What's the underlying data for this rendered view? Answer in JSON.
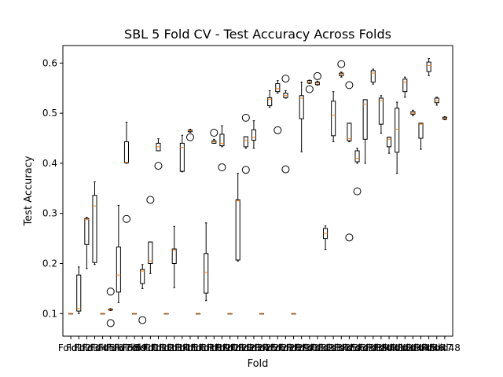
{
  "chart_data": {
    "type": "boxplot",
    "title": "SBL 5 Fold CV - Test Accuracy Across Folds",
    "xlabel": "Fold",
    "ylabel": "Test Accuracy",
    "ylim": [
      0.055,
      0.635
    ],
    "yticks": [
      0.1,
      0.2,
      0.3,
      0.4,
      0.5,
      0.6
    ],
    "ytick_labels": [
      "0.1",
      "0.2",
      "0.3",
      "0.4",
      "0.5",
      "0.6"
    ],
    "grid": false,
    "xtick_labels": [
      "Fold1",
      "Fold2",
      "Fold3",
      "Fold4",
      "Fold5",
      "Fold6",
      "Fold7",
      "Fold8",
      "Fold9",
      "Fold10",
      "Fold11",
      "Fold12",
      "Fold13",
      "Fold14",
      "Fold15",
      "Fold16",
      "Fold17",
      "Fold18",
      "Fold19",
      "Fold20",
      "Fold21",
      "Fold22",
      "Fold23",
      "Fold24",
      "Fold25",
      "Fold26",
      "Fold27",
      "Fold28",
      "Fold29",
      "Fold30",
      "Fold31",
      "Fold32",
      "Fold33",
      "Fold34",
      "Fold35",
      "Fold36",
      "Fold37",
      "Fold38",
      "Fold39",
      "Fold40",
      "Fold41",
      "Fold42",
      "Fold43",
      "Fold44",
      "Fold45",
      "Fold46",
      "Fold47",
      "Fold48"
    ],
    "boxes": [
      {
        "whislo": 0.1,
        "q1": 0.1,
        "med": 0.1,
        "q3": 0.1,
        "whishi": 0.1,
        "fliers": []
      },
      {
        "whislo": 0.1,
        "q1": 0.105,
        "med": 0.11,
        "q3": 0.177,
        "whishi": 0.193,
        "fliers": []
      },
      {
        "whislo": 0.19,
        "q1": 0.238,
        "med": 0.288,
        "q3": 0.29,
        "whishi": 0.292,
        "fliers": []
      },
      {
        "whislo": 0.198,
        "q1": 0.202,
        "med": 0.315,
        "q3": 0.336,
        "whishi": 0.363,
        "fliers": []
      },
      {
        "whislo": 0.1,
        "q1": 0.1,
        "med": 0.1,
        "q3": 0.1,
        "whishi": 0.1,
        "fliers": []
      },
      {
        "whislo": 0.106,
        "q1": 0.107,
        "med": 0.108,
        "q3": 0.109,
        "whishi": 0.11,
        "fliers": [
          0.081,
          0.144
        ]
      },
      {
        "whislo": 0.122,
        "q1": 0.143,
        "med": 0.177,
        "q3": 0.233,
        "whishi": 0.316,
        "fliers": []
      },
      {
        "whislo": 0.4,
        "q1": 0.401,
        "med": 0.402,
        "q3": 0.443,
        "whishi": 0.482,
        "fliers": [
          0.289
        ]
      },
      {
        "whislo": 0.1,
        "q1": 0.1,
        "med": 0.1,
        "q3": 0.1,
        "whishi": 0.1,
        "fliers": []
      },
      {
        "whislo": 0.15,
        "q1": 0.16,
        "med": 0.185,
        "q3": 0.188,
        "whishi": 0.198,
        "fliers": [
          0.087
        ]
      },
      {
        "whislo": 0.18,
        "q1": 0.2,
        "med": 0.205,
        "q3": 0.243,
        "whishi": 0.243,
        "fliers": [
          0.327
        ]
      },
      {
        "whislo": 0.425,
        "q1": 0.425,
        "med": 0.433,
        "q3": 0.44,
        "whishi": 0.449,
        "fliers": [
          0.395
        ]
      },
      {
        "whislo": 0.1,
        "q1": 0.1,
        "med": 0.1,
        "q3": 0.1,
        "whishi": 0.1,
        "fliers": []
      },
      {
        "whislo": 0.152,
        "q1": 0.2,
        "med": 0.227,
        "q3": 0.229,
        "whishi": 0.274,
        "fliers": []
      },
      {
        "whislo": 0.383,
        "q1": 0.384,
        "med": 0.432,
        "q3": 0.44,
        "whishi": 0.456,
        "fliers": []
      },
      {
        "whislo": 0.462,
        "q1": 0.463,
        "med": 0.465,
        "q3": 0.466,
        "whishi": 0.468,
        "fliers": [
          0.452
        ]
      },
      {
        "whislo": 0.1,
        "q1": 0.1,
        "med": 0.1,
        "q3": 0.1,
        "whishi": 0.1,
        "fliers": []
      },
      {
        "whislo": 0.126,
        "q1": 0.141,
        "med": 0.182,
        "q3": 0.22,
        "whishi": 0.281,
        "fliers": []
      },
      {
        "whislo": 0.44,
        "q1": 0.44,
        "med": 0.443,
        "q3": 0.445,
        "whishi": 0.448,
        "fliers": [
          0.461
        ]
      },
      {
        "whislo": 0.433,
        "q1": 0.435,
        "med": 0.44,
        "q3": 0.458,
        "whishi": 0.475,
        "fliers": [
          0.392
        ]
      },
      {
        "whislo": 0.1,
        "q1": 0.1,
        "med": 0.1,
        "q3": 0.1,
        "whishi": 0.1,
        "fliers": []
      },
      {
        "whislo": 0.205,
        "q1": 0.207,
        "med": 0.325,
        "q3": 0.327,
        "whishi": 0.38,
        "fliers": []
      },
      {
        "whislo": 0.43,
        "q1": 0.433,
        "med": 0.446,
        "q3": 0.453,
        "whishi": 0.453,
        "fliers": [
          0.491,
          0.387
        ]
      },
      {
        "whislo": 0.43,
        "q1": 0.446,
        "med": 0.452,
        "q3": 0.467,
        "whishi": 0.485,
        "fliers": []
      },
      {
        "whislo": 0.1,
        "q1": 0.1,
        "med": 0.1,
        "q3": 0.1,
        "whishi": 0.1,
        "fliers": []
      },
      {
        "whislo": 0.512,
        "q1": 0.515,
        "med": 0.528,
        "q3": 0.531,
        "whishi": 0.545,
        "fliers": []
      },
      {
        "whislo": 0.54,
        "q1": 0.543,
        "med": 0.549,
        "q3": 0.559,
        "whishi": 0.565,
        "fliers": [
          0.466
        ]
      },
      {
        "whislo": 0.53,
        "q1": 0.531,
        "med": 0.535,
        "q3": 0.54,
        "whishi": 0.545,
        "fliers": [
          0.569,
          0.388
        ]
      },
      {
        "whislo": 0.1,
        "q1": 0.1,
        "med": 0.1,
        "q3": 0.1,
        "whishi": 0.1,
        "fliers": []
      },
      {
        "whislo": 0.423,
        "q1": 0.489,
        "med": 0.53,
        "q3": 0.535,
        "whishi": 0.562,
        "fliers": []
      },
      {
        "whislo": 0.559,
        "q1": 0.56,
        "med": 0.562,
        "q3": 0.565,
        "whishi": 0.566,
        "fliers": [
          0.548
        ]
      },
      {
        "whislo": 0.556,
        "q1": 0.557,
        "med": 0.56,
        "q3": 0.562,
        "whishi": 0.564,
        "fliers": [
          0.574
        ]
      },
      {
        "whislo": 0.228,
        "q1": 0.25,
        "med": 0.26,
        "q3": 0.27,
        "whishi": 0.275,
        "fliers": []
      },
      {
        "whislo": 0.443,
        "q1": 0.455,
        "med": 0.496,
        "q3": 0.524,
        "whishi": 0.543,
        "fliers": []
      },
      {
        "whislo": 0.572,
        "q1": 0.575,
        "med": 0.578,
        "q3": 0.58,
        "whishi": 0.582,
        "fliers": [
          0.598
        ]
      },
      {
        "whislo": 0.443,
        "q1": 0.445,
        "med": 0.449,
        "q3": 0.48,
        "whishi": 0.48,
        "fliers": [
          0.556,
          0.252
        ]
      },
      {
        "whislo": 0.4,
        "q1": 0.403,
        "med": 0.41,
        "q3": 0.425,
        "whishi": 0.43,
        "fliers": [
          0.344
        ]
      },
      {
        "whislo": 0.4,
        "q1": 0.448,
        "med": 0.518,
        "q3": 0.527,
        "whishi": 0.527,
        "fliers": []
      },
      {
        "whislo": 0.558,
        "q1": 0.562,
        "med": 0.58,
        "q3": 0.585,
        "whishi": 0.588,
        "fliers": []
      },
      {
        "whislo": 0.46,
        "q1": 0.478,
        "med": 0.525,
        "q3": 0.53,
        "whishi": 0.535,
        "fliers": []
      },
      {
        "whislo": 0.42,
        "q1": 0.433,
        "med": 0.448,
        "q3": 0.452,
        "whishi": 0.452,
        "fliers": []
      },
      {
        "whislo": 0.38,
        "q1": 0.422,
        "med": 0.468,
        "q3": 0.51,
        "whishi": 0.522,
        "fliers": []
      },
      {
        "whislo": 0.532,
        "q1": 0.543,
        "med": 0.562,
        "q3": 0.568,
        "whishi": 0.572,
        "fliers": []
      },
      {
        "whislo": 0.495,
        "q1": 0.498,
        "med": 0.5,
        "q3": 0.503,
        "whishi": 0.506,
        "fliers": []
      },
      {
        "whislo": 0.428,
        "q1": 0.45,
        "med": 0.478,
        "q3": 0.48,
        "whishi": 0.48,
        "fliers": []
      },
      {
        "whislo": 0.575,
        "q1": 0.583,
        "med": 0.595,
        "q3": 0.602,
        "whishi": 0.609,
        "fliers": []
      },
      {
        "whislo": 0.516,
        "q1": 0.521,
        "med": 0.525,
        "q3": 0.53,
        "whishi": 0.532,
        "fliers": []
      },
      {
        "whislo": 0.487,
        "q1": 0.488,
        "med": 0.49,
        "q3": 0.492,
        "whishi": 0.493,
        "fliers": []
      }
    ],
    "colors": {
      "box": "#000000",
      "median": "#ff7f0e",
      "flier": "#000000"
    }
  }
}
